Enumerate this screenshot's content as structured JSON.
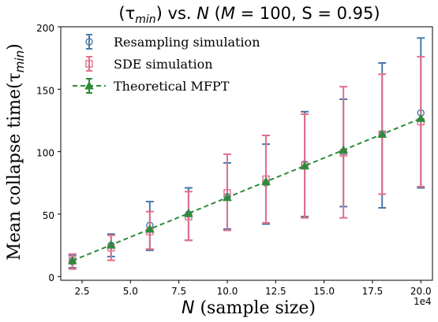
{
  "chart_data": {
    "type": "line",
    "title": "(τ_min) vs. N (M = 100, S = 0.95)",
    "title_parts": {
      "open": "(τ",
      "sub": "min",
      "mid": ") vs. ",
      "N": "N",
      "rest": " (",
      "M": "M",
      "eq": " = 100, S = 0.95)"
    },
    "xlabel": "(sample size)",
    "xlabel_var": "N",
    "ylabel": "Mean collapse time(τ",
    "ylabel_sub": "min",
    "ylabel_close": ")",
    "x_offset_label": "1e4",
    "xlim": [
      1.4,
      20.6
    ],
    "ylim": [
      -3,
      200
    ],
    "x_ticks": [
      2.5,
      5.0,
      7.5,
      10.0,
      12.5,
      15.0,
      17.5,
      20.0
    ],
    "x_tick_labels": [
      "2.5",
      "5.0",
      "7.5",
      "10.0",
      "12.5",
      "15.0",
      "17.5",
      "20.0"
    ],
    "y_ticks": [
      0,
      50,
      100,
      150,
      200
    ],
    "y_tick_labels": [
      "0",
      "50",
      "100",
      "150",
      "200"
    ],
    "legend_position": "top-left",
    "series": [
      {
        "name": "Resampling simulation",
        "marker": "circle",
        "color": "#4a78a8",
        "x": [
          2,
          4,
          6,
          8,
          10,
          12,
          14,
          16,
          18,
          20
        ],
        "y": [
          12,
          25,
          41,
          50,
          64,
          75,
          90,
          100,
          114,
          131
        ],
        "err_low": [
          7,
          16,
          21,
          29,
          38,
          42,
          48,
          56,
          55,
          71
        ],
        "err_high": [
          17,
          34,
          60,
          71,
          91,
          106,
          132,
          142,
          171,
          191
        ]
      },
      {
        "name": "SDE simulation",
        "marker": "square",
        "color": "#e26f8a",
        "x": [
          2,
          4,
          6,
          8,
          10,
          12,
          14,
          16,
          18,
          20
        ],
        "y": [
          13,
          23,
          36,
          48,
          67,
          78,
          89,
          99,
          114,
          124
        ],
        "err_low": [
          6,
          13,
          22,
          29,
          37,
          43,
          47,
          47,
          66,
          72
        ],
        "err_high": [
          18,
          33,
          52,
          68,
          98,
          113,
          130,
          152,
          162,
          176
        ]
      },
      {
        "name": "Theoretical MFPT",
        "marker": "triangle",
        "color": "#2e8b3a",
        "dashed": true,
        "x": [
          2,
          4,
          6,
          8,
          10,
          12,
          14,
          16,
          18,
          20
        ],
        "y": [
          12.7,
          25.3,
          38.0,
          50.6,
          63.3,
          76.0,
          88.6,
          101.3,
          114.0,
          126.6
        ]
      }
    ]
  }
}
